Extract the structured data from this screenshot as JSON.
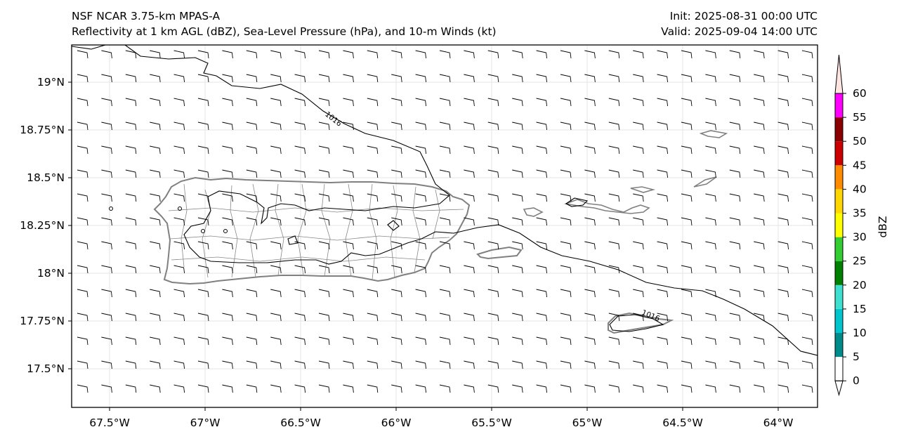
{
  "header": {
    "model": "NSF NCAR 3.75-km MPAS-A",
    "fields": "Reflectivity at 1 km AGL (dBZ), Sea-Level Pressure (hPa), and 10-m Winds (kt)",
    "init": "Init: 2025-08-31 00:00 UTC",
    "valid": "Valid: 2025-09-04 14:00 UTC"
  },
  "map": {
    "lon_range": [
      -67.7,
      -63.8
    ],
    "lat_range": [
      17.3,
      19.2
    ],
    "lat_ticks": [
      {
        "value": 19.0,
        "label": "19°N"
      },
      {
        "value": 18.75,
        "label": "18.75°N"
      },
      {
        "value": 18.5,
        "label": "18.5°N"
      },
      {
        "value": 18.25,
        "label": "18.25°N"
      },
      {
        "value": 18.0,
        "label": "18°N"
      },
      {
        "value": 17.75,
        "label": "17.75°N"
      },
      {
        "value": 17.5,
        "label": "17.5°N"
      }
    ],
    "lon_ticks": [
      {
        "value": -67.5,
        "label": "67.5°W"
      },
      {
        "value": -67.0,
        "label": "67°W"
      },
      {
        "value": -66.5,
        "label": "66.5°W"
      },
      {
        "value": -66.0,
        "label": "66°W"
      },
      {
        "value": -65.5,
        "label": "65.5°W"
      },
      {
        "value": -65.0,
        "label": "65°W"
      },
      {
        "value": -64.5,
        "label": "64.5°W"
      },
      {
        "value": -64.0,
        "label": "64°W"
      }
    ],
    "pressure_contours": [
      {
        "label": "1016"
      },
      {
        "label": "1016"
      }
    ],
    "gridlines": true,
    "wind_barbs": "easterly ~10 kt across domain"
  },
  "colorbar": {
    "label": "dBZ",
    "extend": "both",
    "levels": [
      0,
      5,
      10,
      15,
      20,
      25,
      30,
      35,
      40,
      45,
      50,
      55,
      60
    ],
    "tick_labels": [
      "0",
      "5",
      "10",
      "15",
      "20",
      "25",
      "30",
      "35",
      "40",
      "45",
      "50",
      "55",
      "60"
    ],
    "colors": [
      "#ffffff",
      "#008b8b",
      "#00c5cd",
      "#40e0d0",
      "#008000",
      "#32cd32",
      "#ffff00",
      "#ffd700",
      "#ff8c00",
      "#cc0000",
      "#8b0000",
      "#ff00ff",
      "#ffe4e1"
    ]
  }
}
